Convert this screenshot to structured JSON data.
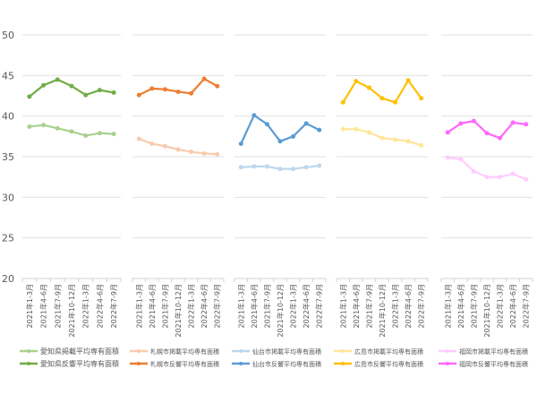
{
  "chart_data": {
    "type": "line",
    "ylim": [
      20,
      50
    ],
    "yticks": [
      20,
      25,
      30,
      35,
      40,
      45,
      50
    ],
    "grid": true,
    "categories": [
      "2021年1-3月",
      "2021年4-6月",
      "2021年7-9月",
      "2021年10-12月",
      "2022年1-3月",
      "2022年4-6月",
      "2022年7-9月"
    ],
    "panels": [
      {
        "series": [
          {
            "name": "愛知県掲載平均専有面積",
            "color": "#a9d18e",
            "values": [
              38.7,
              38.9,
              38.5,
              38.1,
              37.6,
              37.9,
              37.8
            ]
          },
          {
            "name": "愛知県反響平均専有面積",
            "color": "#70ad47",
            "values": [
              42.4,
              43.8,
              44.5,
              43.7,
              42.6,
              43.2,
              42.9
            ]
          }
        ]
      },
      {
        "series": [
          {
            "name": "札幌市掲載平均専有面積",
            "color": "#f8cbad",
            "values": [
              37.2,
              36.6,
              36.3,
              35.9,
              35.6,
              35.4,
              35.3
            ]
          },
          {
            "name": "札幌市反響平均専有面積",
            "color": "#ed7d31",
            "values": [
              42.6,
              43.4,
              43.3,
              43.0,
              42.8,
              44.6,
              43.7
            ]
          }
        ]
      },
      {
        "series": [
          {
            "name": "仙台市掲載平均専有面積",
            "color": "#bdd7ee",
            "values": [
              33.7,
              33.8,
              33.8,
              33.5,
              33.5,
              33.7,
              33.9
            ]
          },
          {
            "name": "仙台市反響平均専有面積",
            "color": "#5b9bd5",
            "values": [
              36.6,
              40.1,
              39.0,
              36.9,
              37.5,
              39.1,
              38.3
            ]
          }
        ]
      },
      {
        "series": [
          {
            "name": "広島市掲載平均専有面積",
            "color": "#ffe699",
            "values": [
              38.4,
              38.4,
              38.0,
              37.3,
              37.1,
              36.9,
              36.4
            ]
          },
          {
            "name": "広島市反響平均専有面積",
            "color": "#ffc000",
            "values": [
              41.7,
              44.3,
              43.5,
              42.2,
              41.7,
              44.4,
              42.2
            ]
          }
        ]
      },
      {
        "series": [
          {
            "name": "福岡市掲載平均専有面積",
            "color": "#ffccff",
            "values": [
              34.9,
              34.7,
              33.2,
              32.5,
              32.5,
              32.9,
              32.2
            ]
          },
          {
            "name": "福岡市反響平均専有面積",
            "color": "#ff66ff",
            "values": [
              38.0,
              39.1,
              39.4,
              37.9,
              37.3,
              39.2,
              39.0
            ]
          }
        ]
      }
    ]
  }
}
